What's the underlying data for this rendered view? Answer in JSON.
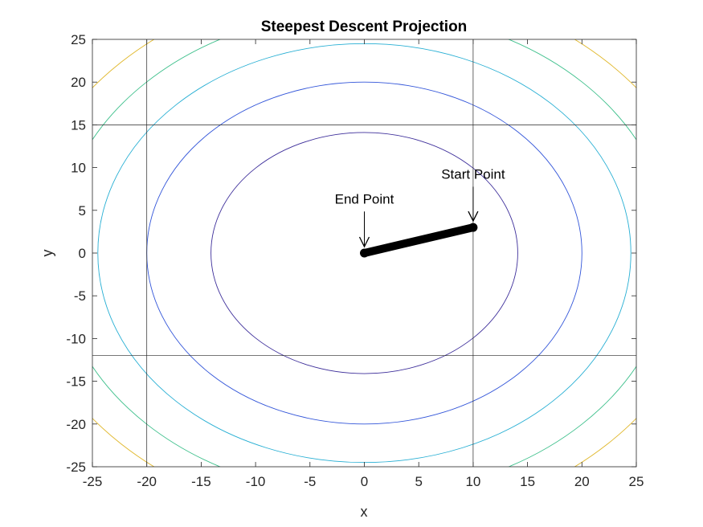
{
  "chart_data": {
    "type": "contour",
    "title": "Steepest Descent Projection",
    "xlabel": "x",
    "ylabel": "y",
    "xlim": [
      -25,
      25
    ],
    "ylim": [
      -25,
      25
    ],
    "xticks": [
      -25,
      -20,
      -15,
      -10,
      -5,
      0,
      5,
      10,
      15,
      20,
      25
    ],
    "yticks": [
      -25,
      -20,
      -15,
      -10,
      -5,
      0,
      5,
      10,
      15,
      20,
      25
    ],
    "grid": false,
    "box": true,
    "contours": [
      {
        "rx": 14.1,
        "ry": 14.1,
        "color": "#3d2e9a"
      },
      {
        "rx": 20.0,
        "ry": 20.0,
        "color": "#3255d9"
      },
      {
        "rx": 24.5,
        "ry": 24.5,
        "color": "#25aed3"
      },
      {
        "rx": 28.3,
        "ry": 28.3,
        "color": "#3bbf8a"
      },
      {
        "rx": 31.6,
        "ry": 31.6,
        "color": "#e0b72a"
      }
    ],
    "reference_lines": {
      "vertical": [
        -20,
        10
      ],
      "horizontal": [
        15,
        -12
      ],
      "color": "#262626"
    },
    "path": {
      "points": [
        [
          10,
          3
        ],
        [
          0,
          0
        ]
      ],
      "color": "#000000"
    },
    "annotations": [
      {
        "text": "Start Point",
        "x": 10,
        "y": 3,
        "text_y": 8.7
      },
      {
        "text": "End Point",
        "x": 0,
        "y": 0,
        "text_y": 5.8
      }
    ]
  }
}
